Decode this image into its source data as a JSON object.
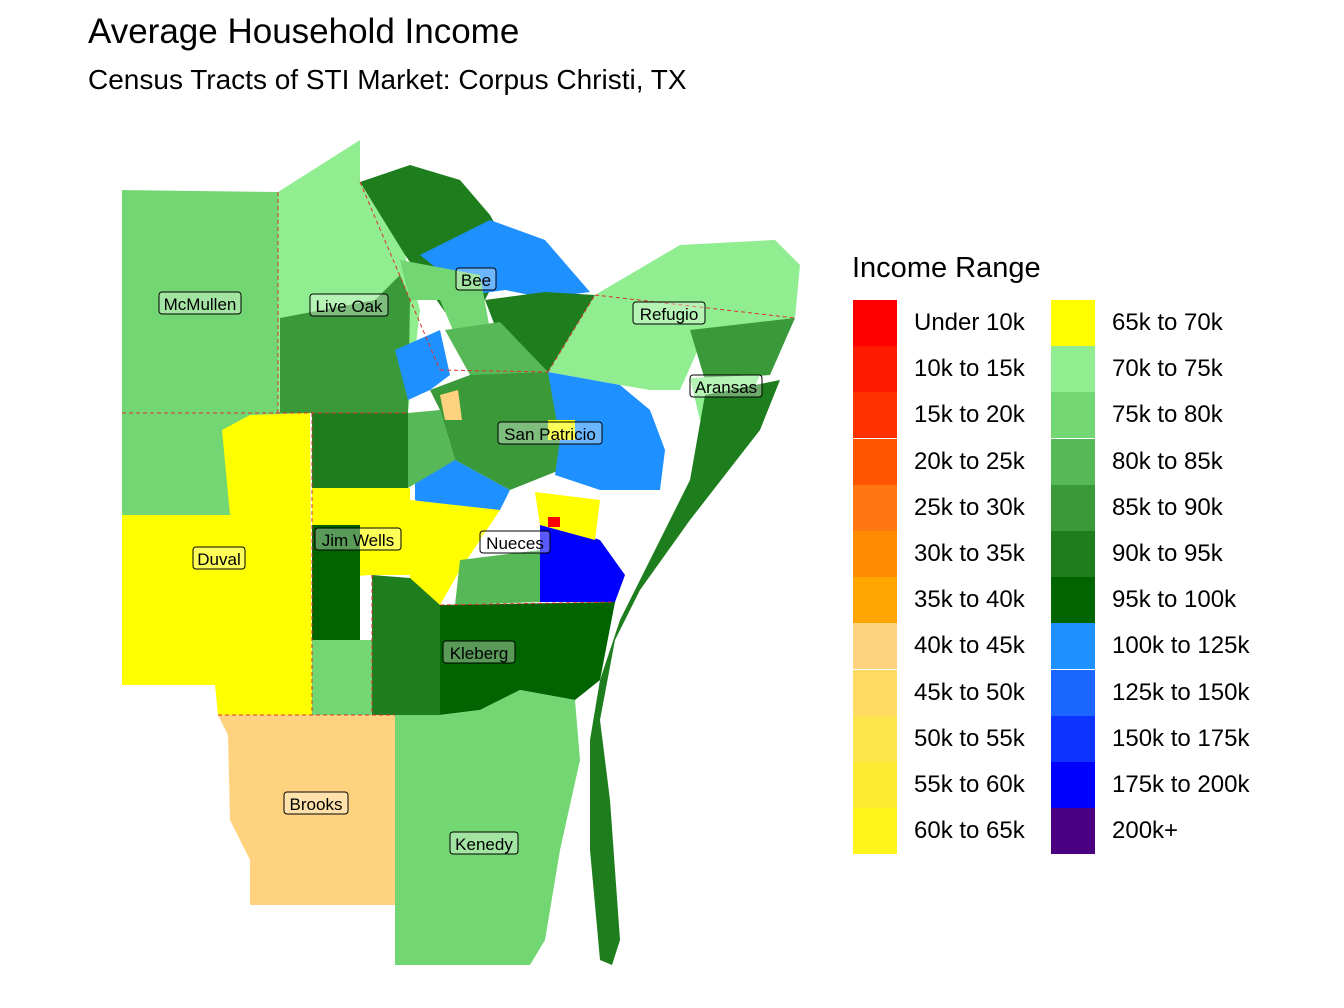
{
  "title": "Average Household Income",
  "subtitle": "Census Tracts of STI Market: Corpus Christi, TX",
  "legend": {
    "title": "Income Range",
    "items": [
      {
        "label": "Under 10k",
        "color": "#FF0000"
      },
      {
        "label": "10k to 15k",
        "color": "#FF1A00"
      },
      {
        "label": "15k to 20k",
        "color": "#FF3300"
      },
      {
        "label": "20k to 25k",
        "color": "#FF5500"
      },
      {
        "label": "25k to 30k",
        "color": "#FF7711"
      },
      {
        "label": "30k to 35k",
        "color": "#FF8C00"
      },
      {
        "label": "35k to 40k",
        "color": "#FFA500"
      },
      {
        "label": "40k to 45k",
        "color": "#FFD27F"
      },
      {
        "label": "45k to 50k",
        "color": "#FFDB66"
      },
      {
        "label": "50k to 55k",
        "color": "#FFE54D"
      },
      {
        "label": "55k to 60k",
        "color": "#FFEA33"
      },
      {
        "label": "60k to 65k",
        "color": "#FFF51A"
      },
      {
        "label": "65k to 70k",
        "color": "#FFFF00"
      },
      {
        "label": "70k to 75k",
        "color": "#90EE90"
      },
      {
        "label": "75k to 80k",
        "color": "#72D672"
      },
      {
        "label": "80k to 85k",
        "color": "#57B857"
      },
      {
        "label": "85k to 90k",
        "color": "#3A9A3A"
      },
      {
        "label": "90k to 95k",
        "color": "#1E7E1E"
      },
      {
        "label": "95k to 100k",
        "color": "#006400"
      },
      {
        "label": "100k to 125k",
        "color": "#1E90FF"
      },
      {
        "label": "125k to 150k",
        "color": "#1A66FF"
      },
      {
        "label": "150k to 175k",
        "color": "#0D33FF"
      },
      {
        "label": "175k to 200k",
        "color": "#0000FF"
      },
      {
        "label": "200k+",
        "color": "#4B0082"
      }
    ]
  },
  "counties": [
    {
      "name": "McMullen"
    },
    {
      "name": "Live Oak"
    },
    {
      "name": "Bee"
    },
    {
      "name": "Refugio"
    },
    {
      "name": "Aransas"
    },
    {
      "name": "San Patricio"
    },
    {
      "name": "Jim Wells"
    },
    {
      "name": "Nueces"
    },
    {
      "name": "Duval"
    },
    {
      "name": "Kleberg"
    },
    {
      "name": "Brooks"
    },
    {
      "name": "Kenedy"
    }
  ]
}
